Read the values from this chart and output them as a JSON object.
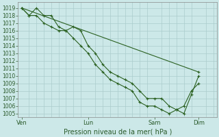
{
  "background_color": "#cce8e8",
  "grid_color": "#aacccc",
  "line_color": "#2a6020",
  "title": "Pression niveau de la mer( hPa )",
  "ylim": [
    1004.5,
    1019.8
  ],
  "yticks": [
    1005,
    1006,
    1007,
    1008,
    1009,
    1010,
    1011,
    1012,
    1013,
    1014,
    1015,
    1016,
    1017,
    1018,
    1019
  ],
  "x_tick_labels": [
    "Ven",
    "Lun",
    "Sam",
    "Dim"
  ],
  "x_tick_positions": [
    0,
    9,
    18,
    24
  ],
  "xlim": [
    -0.5,
    26.5
  ],
  "series1_x": [
    0,
    1,
    2,
    3,
    4,
    5,
    6,
    7,
    8,
    9,
    10,
    11,
    12,
    13,
    14,
    15,
    16,
    17,
    18,
    19,
    20,
    21,
    22,
    23,
    24
  ],
  "series1_y": [
    1019.0,
    1018.0,
    1018.0,
    1017.0,
    1016.5,
    1016.0,
    1016.0,
    1015.0,
    1014.0,
    1013.0,
    1011.5,
    1010.5,
    1009.5,
    1009.0,
    1008.5,
    1008.0,
    1006.5,
    1006.0,
    1006.0,
    1005.5,
    1005.0,
    1005.5,
    1006.0,
    1008.0,
    1009.0
  ],
  "series2_x": [
    0,
    1,
    2,
    3,
    4,
    5,
    6,
    7,
    8,
    9,
    10,
    11,
    12,
    13,
    14,
    15,
    16,
    17,
    18,
    19,
    20,
    21,
    22,
    23,
    24
  ],
  "series2_y": [
    1019.0,
    1018.0,
    1019.0,
    1018.0,
    1018.0,
    1016.5,
    1016.0,
    1016.5,
    1016.0,
    1014.0,
    1013.0,
    1011.5,
    1010.5,
    1010.0,
    1009.5,
    1009.0,
    1008.0,
    1007.0,
    1007.0,
    1007.0,
    1006.0,
    1005.5,
    1005.0,
    1007.5,
    1010.0
  ],
  "series3_x": [
    0,
    24
  ],
  "series3_y": [
    1019.0,
    1010.5
  ],
  "figwidth": 3.2,
  "figheight": 2.0,
  "dpi": 100
}
